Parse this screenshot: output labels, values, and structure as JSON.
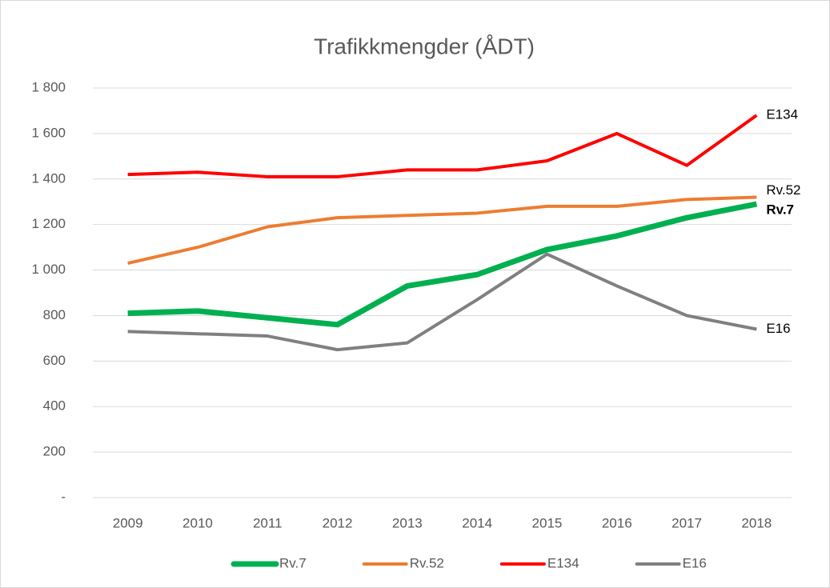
{
  "chart_data": {
    "type": "line",
    "title": "Trafikkmengder  (ÅDT)",
    "categories": [
      "2009",
      "2010",
      "2011",
      "2012",
      "2013",
      "2014",
      "2015",
      "2016",
      "2017",
      "2018"
    ],
    "series": [
      {
        "name": "Rv.7",
        "color": "#00b050",
        "width": 7,
        "bold_label": true,
        "values": [
          810,
          820,
          790,
          760,
          930,
          980,
          1090,
          1150,
          1230,
          1290
        ]
      },
      {
        "name": "Rv.52",
        "color": "#ed7d31",
        "width": 4,
        "values": [
          1030,
          1100,
          1190,
          1230,
          1240,
          1250,
          1280,
          1280,
          1310,
          1320
        ]
      },
      {
        "name": "E134",
        "color": "#ff0000",
        "width": 4,
        "values": [
          1420,
          1430,
          1410,
          1410,
          1440,
          1440,
          1480,
          1600,
          1460,
          1680
        ]
      },
      {
        "name": "E16",
        "color": "#808080",
        "width": 4,
        "values": [
          730,
          720,
          710,
          650,
          680,
          870,
          1070,
          930,
          800,
          740
        ]
      }
    ],
    "ylim": [
      0,
      1800
    ],
    "yticks": [
      {
        "value": 0,
        "label": "-"
      },
      {
        "value": 200,
        "label": "200"
      },
      {
        "value": 400,
        "label": "400"
      },
      {
        "value": 600,
        "label": "600"
      },
      {
        "value": 800,
        "label": "800"
      },
      {
        "value": 1000,
        "label": "1 000"
      },
      {
        "value": 1200,
        "label": "1 200"
      },
      {
        "value": 1400,
        "label": "1 400"
      },
      {
        "value": 1600,
        "label": "1 600"
      },
      {
        "value": 1800,
        "label": "1 800"
      }
    ],
    "grid": true,
    "legend": "bottom"
  }
}
